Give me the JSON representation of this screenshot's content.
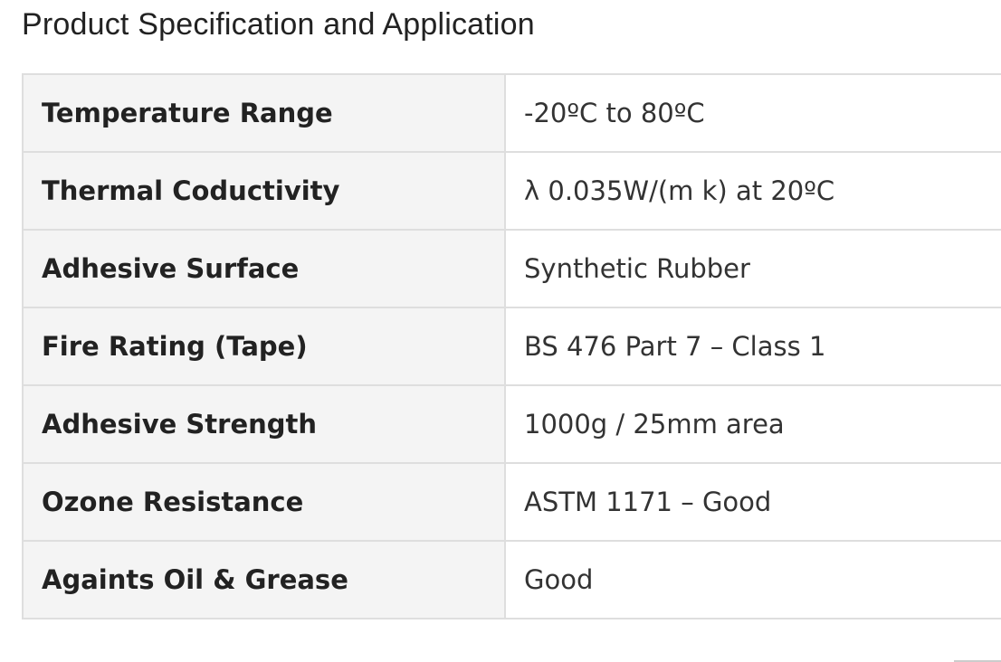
{
  "title": "Product Specification and Application",
  "rows": [
    {
      "label": "Temperature Range",
      "value": "-20ºC to 80ºC"
    },
    {
      "label": "Thermal Coductivity",
      "value": "λ 0.035W/(m k) at 20ºC"
    },
    {
      "label": "Adhesive Surface",
      "value": "Synthetic Rubber"
    },
    {
      "label": "Fire Rating (Tape)",
      "value": "BS 476 Part 7 – Class 1"
    },
    {
      "label": "Adhesive Strength",
      "value": "1000g / 25mm area"
    },
    {
      "label": "Ozone Resistance",
      "value": "ASTM 1171 – Good"
    },
    {
      "label": "Againts Oil & Grease",
      "value": "Good"
    }
  ]
}
